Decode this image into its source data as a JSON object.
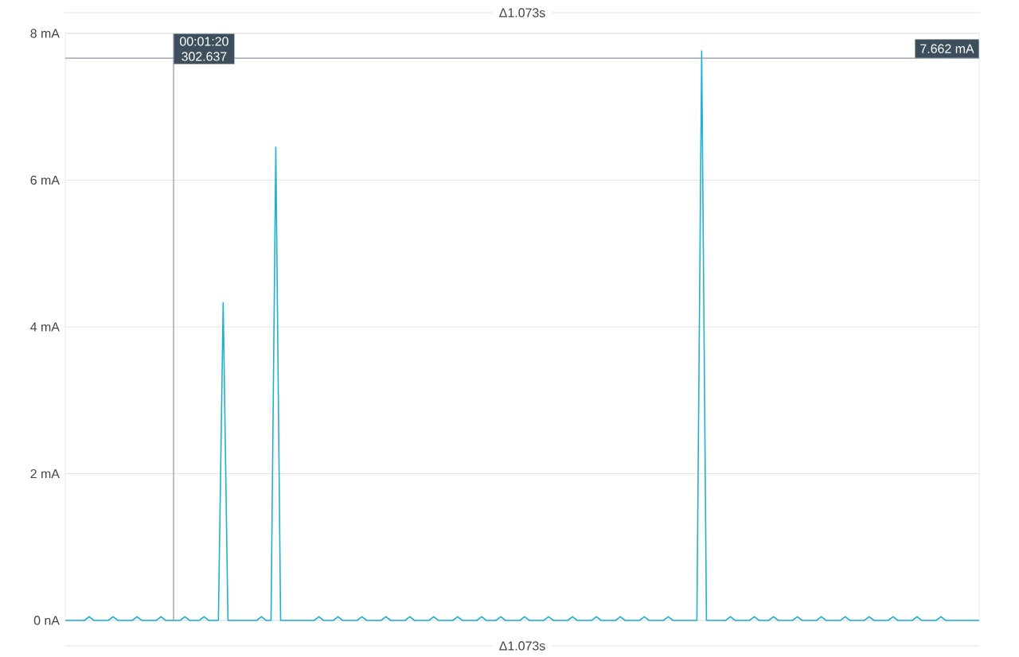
{
  "chart_data": {
    "type": "line",
    "categories": [
      null,
      null,
      null,
      null,
      null,
      null,
      null,
      null,
      null,
      null,
      null,
      null,
      null,
      null,
      null,
      null,
      null,
      null,
      null,
      null,
      null,
      null,
      null,
      null,
      null,
      null,
      null,
      null,
      null,
      null,
      null,
      null,
      null,
      null,
      null,
      null,
      null,
      null,
      null,
      null,
      null,
      null,
      null,
      null,
      null,
      null,
      null,
      null,
      null,
      null,
      null,
      null,
      null,
      null,
      null,
      null,
      null,
      null,
      null,
      null,
      null,
      null,
      null,
      null,
      null,
      null,
      null,
      null,
      null,
      null,
      null,
      null,
      null,
      null,
      null,
      null,
      null,
      null,
      null,
      null,
      null,
      null,
      null,
      null,
      null,
      null,
      null,
      null,
      null,
      null,
      null,
      null,
      null,
      null,
      null,
      null,
      null,
      null,
      null,
      null,
      null,
      null,
      null,
      null,
      null,
      null,
      null,
      null,
      null,
      null,
      null,
      null,
      null,
      null,
      null,
      null,
      null,
      null,
      null,
      null,
      null,
      null,
      null,
      null,
      null,
      null,
      null,
      null,
      null,
      null,
      null,
      null,
      null,
      null,
      null,
      null,
      null,
      null,
      null,
      null,
      null,
      null,
      null,
      null,
      null,
      null,
      null,
      null,
      null,
      null,
      null,
      null,
      null,
      null,
      null,
      null,
      null,
      null,
      null,
      null,
      null,
      null,
      null,
      null,
      null,
      null,
      null,
      null,
      null,
      null,
      null,
      null,
      null,
      null,
      null,
      null,
      null,
      null,
      null,
      null,
      null,
      null,
      null,
      null,
      null,
      null,
      null,
      null,
      null,
      null,
      null,
      null
    ],
    "series": [
      {
        "color": "#1fb0d3",
        "values": [
          0,
          0,
          0,
          0,
          0,
          0.05,
          0,
          0,
          0,
          0,
          0.05,
          0,
          0,
          0,
          0,
          0.05,
          0,
          0,
          0,
          0,
          0.05,
          0,
          0,
          0,
          0,
          0.05,
          0,
          0,
          0,
          0.05,
          0,
          0,
          0,
          4.33,
          0,
          0,
          0,
          0,
          0,
          0,
          0,
          0.05,
          0,
          0,
          6.45,
          0,
          0,
          0,
          0,
          0,
          0,
          0,
          0,
          0.05,
          0,
          0,
          0,
          0.05,
          0,
          0,
          0,
          0,
          0.05,
          0,
          0,
          0,
          0,
          0.05,
          0,
          0,
          0,
          0,
          0.05,
          0,
          0,
          0,
          0,
          0.05,
          0,
          0,
          0,
          0,
          0.05,
          0,
          0,
          0,
          0,
          0.05,
          0,
          0,
          0,
          0.05,
          0,
          0,
          0,
          0,
          0.05,
          0,
          0,
          0,
          0,
          0.05,
          0,
          0,
          0,
          0,
          0.05,
          0,
          0,
          0,
          0,
          0.05,
          0,
          0,
          0,
          0,
          0.05,
          0,
          0,
          0,
          0,
          0.05,
          0,
          0,
          0,
          0,
          0.05,
          0,
          0,
          0,
          0,
          0,
          0,
          7.76,
          0,
          0,
          0,
          0,
          0,
          0.05,
          0,
          0,
          0,
          0,
          0.05,
          0,
          0,
          0,
          0.05,
          0,
          0,
          0,
          0,
          0.05,
          0,
          0,
          0,
          0,
          0.05,
          0,
          0,
          0,
          0,
          0.05,
          0,
          0,
          0,
          0,
          0.05,
          0,
          0,
          0,
          0,
          0.05,
          0,
          0,
          0,
          0,
          0.05,
          0,
          0,
          0,
          0,
          0.05,
          0,
          0,
          0,
          0,
          0,
          0,
          0,
          0
        ]
      }
    ],
    "ylim": [
      0,
      8
    ],
    "yticks": [
      {
        "value": 0,
        "label": "0 nA"
      },
      {
        "value": 2,
        "label": "2 mA"
      },
      {
        "value": 4,
        "label": "4 mA"
      },
      {
        "value": 6,
        "label": "6 mA"
      },
      {
        "value": 8,
        "label": "8 mA"
      }
    ],
    "tick_labels": "y",
    "grid": "y",
    "marker": "none",
    "line_style": "solid",
    "ref_lines": [
      {
        "axis": "y",
        "value": 7.662,
        "label": "7.662 mA",
        "color": "#8a959e"
      }
    ],
    "annotations": [
      "00:01:20 302.637",
      "Δ1.073s",
      "Δ1.073s"
    ]
  }
}
